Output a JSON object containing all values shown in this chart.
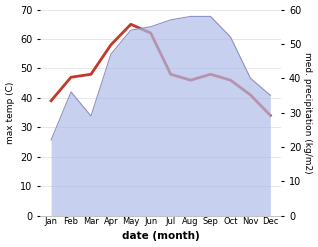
{
  "months": [
    "Jan",
    "Feb",
    "Mar",
    "Apr",
    "May",
    "Jun",
    "Jul",
    "Aug",
    "Sep",
    "Oct",
    "Nov",
    "Dec"
  ],
  "temp": [
    39,
    47,
    48,
    58,
    65,
    62,
    48,
    46,
    48,
    46,
    41,
    34
  ],
  "precip": [
    22,
    36,
    29,
    47,
    54,
    55,
    57,
    58,
    58,
    52,
    40,
    35
  ],
  "temp_color": "#c0392b",
  "precip_color": "#b0bce8",
  "precip_edge_color": "#9090c0",
  "precip_fill_alpha": 0.7,
  "left_ylabel": "max temp (C)",
  "right_ylabel": "med. precipitation (kg/m2)",
  "xlabel": "date (month)",
  "ylim_left": [
    0,
    70
  ],
  "ylim_right": [
    0,
    60
  ],
  "yticks_left": [
    0,
    10,
    20,
    30,
    40,
    50,
    60,
    70
  ],
  "yticks_right": [
    0,
    10,
    20,
    30,
    40,
    50,
    60
  ],
  "bg_color": "#ffffff",
  "temp_linewidth": 2.0,
  "precip_linewidth": 0.8
}
